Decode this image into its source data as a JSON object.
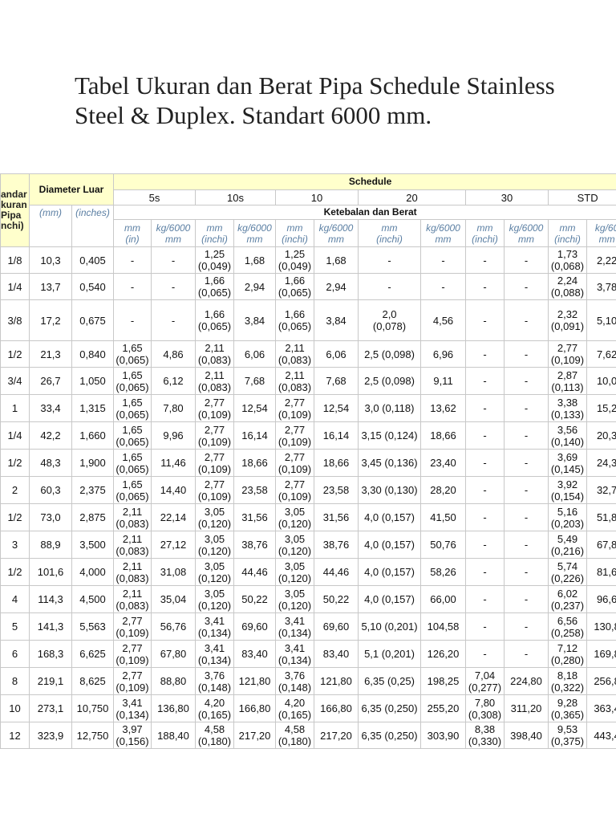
{
  "header": {
    "title": "Tabel Ukuran dan Berat Pipa Schedule Stainless Steel & Duplex. Standart 6000 mm."
  },
  "table": {
    "corner": "andar\nkuran\nPipa\nnchi)",
    "diameter": "Diameter Luar",
    "schedule": "Schedule",
    "schedules": [
      "5s",
      "10s",
      "10",
      "20",
      "30",
      "STD"
    ],
    "mm": "(mm)",
    "inches": "(inches)",
    "subheader": "Ketebalan dan Berat",
    "units": [
      "mm\n(in)",
      "kg/6000\nmm",
      "mm\n(inchi)",
      "kg/6000\nmm",
      "mm\n(inchi)",
      "kg/6000\nmm",
      "mm\n(inchi)",
      "kg/6000\nmm",
      "mm\n(inchi)",
      "kg/6000\nmm",
      "mm\n(inchi)",
      "kg/60\nmm"
    ],
    "rows": [
      [
        "1/8",
        "10,3",
        "0,405",
        "-",
        "-",
        "1,25\n(0,049)",
        "1,68",
        "1,25\n(0,049)",
        "1,68",
        "-",
        "-",
        "-",
        "-",
        "1,73\n(0,068)",
        "2,22"
      ],
      [
        "1/4",
        "13,7",
        "0,540",
        "-",
        "-",
        "1,66\n(0,065)",
        "2,94",
        "1,66\n(0,065)",
        "2,94",
        "-",
        "-",
        "-",
        "-",
        "2,24\n(0,088)",
        "3,78"
      ],
      [
        "3/8",
        "17,2",
        "0,675",
        "-",
        "-",
        "1,66\n(0,065)",
        "3,84",
        "1,66\n(0,065)",
        "3,84",
        "2,0\n(0,078)",
        "4,56",
        "-",
        "-",
        "2,32\n(0,091)",
        "5,10"
      ],
      [
        "1/2",
        "21,3",
        "0,840",
        "1,65\n(0,065)",
        "4,86",
        "2,11\n(0,083)",
        "6,06",
        "2,11\n(0,083)",
        "6,06",
        "2,5 (0,098)",
        "6,96",
        "-",
        "-",
        "2,77\n(0,109)",
        "7,62"
      ],
      [
        "3/4",
        "26,7",
        "1,050",
        "1,65\n(0,065)",
        "6,12",
        "2,11\n(0,083)",
        "7,68",
        "2,11\n(0,083)",
        "7,68",
        "2,5 (0,098)",
        "9,11",
        "-",
        "-",
        "2,87\n(0,113)",
        "10,0"
      ],
      [
        "1",
        "33,4",
        "1,315",
        "1,65\n(0,065)",
        "7,80",
        "2,77\n(0,109)",
        "12,54",
        "2,77\n(0,109)",
        "12,54",
        "3,0 (0,118)",
        "13,62",
        "-",
        "-",
        "3,38\n(0,133)",
        "15,2"
      ],
      [
        "1/4",
        "42,2",
        "1,660",
        "1,65\n(0,065)",
        "9,96",
        "2,77\n(0,109)",
        "16,14",
        "2,77\n(0,109)",
        "16,14",
        "3,15 (0,124)",
        "18,66",
        "-",
        "-",
        "3,56\n(0,140)",
        "20,3"
      ],
      [
        "1/2",
        "48,3",
        "1,900",
        "1,65\n(0,065)",
        "11,46",
        "2,77\n(0,109)",
        "18,66",
        "2,77\n(0,109)",
        "18,66",
        "3,45 (0,136)",
        "23,40",
        "-",
        "-",
        "3,69\n(0,145)",
        "24,3"
      ],
      [
        "2",
        "60,3",
        "2,375",
        "1,65\n(0,065)",
        "14,40",
        "2,77\n(0,109)",
        "23,58",
        "2,77\n(0,109)",
        "23,58",
        "3,30 (0,130)",
        "28,20",
        "-",
        "-",
        "3,92\n(0,154)",
        "32,7"
      ],
      [
        "1/2",
        "73,0",
        "2,875",
        "2,11\n(0,083)",
        "22,14",
        "3,05\n(0,120)",
        "31,56",
        "3,05\n(0,120)",
        "31,56",
        "4,0 (0,157)",
        "41,50",
        "-",
        "-",
        "5,16\n(0,203)",
        "51,8"
      ],
      [
        "3",
        "88,9",
        "3,500",
        "2,11\n(0,083)",
        "27,12",
        "3,05\n(0,120)",
        "38,76",
        "3,05\n(0,120)",
        "38,76",
        "4,0   (0,157)",
        "50,76",
        "-",
        "-",
        "5,49\n(0,216)",
        "67,8"
      ],
      [
        "1/2",
        "101,6",
        "4,000",
        "2,11\n(0,083)",
        "31,08",
        "3,05\n(0,120)",
        "44,46",
        "3,05\n(0,120)",
        "44,46",
        "4,0 (0,157)",
        "58,26",
        "-",
        "-",
        "5,74\n(0,226)",
        "81,6"
      ],
      [
        "4",
        "114,3",
        "4,500",
        "2,11\n(0,083)",
        "35,04",
        "3,05\n(0,120)",
        "50,22",
        "3,05\n(0,120)",
        "50,22",
        "4,0 (0,157)",
        "66,00",
        "-",
        "-",
        "6,02\n(0,237)",
        "96,6"
      ],
      [
        "5",
        "141,3",
        "5,563",
        "2,77\n(0,109)",
        "56,76",
        "3,41\n(0,134)",
        "69,60",
        "3,41\n(0,134)",
        "69,60",
        "5,10 (0,201)",
        "104,58",
        "-",
        "-",
        "6,56\n(0,258)",
        "130,8"
      ],
      [
        "6",
        "168,3",
        "6,625",
        "2,77\n(0,109)",
        "67,80",
        "3,41\n(0,134)",
        "83,40",
        "3,41\n(0,134)",
        "83,40",
        "5,1 (0,201)",
        "126,20",
        "-",
        "-",
        "7,12\n(0,280)",
        "169,8"
      ],
      [
        "8",
        "219,1",
        "8,625",
        "2,77\n(0,109)",
        "88,80",
        "3,76\n(0,148)",
        "121,80",
        "3,76\n(0,148)",
        "121,80",
        "6,35 (0,25)",
        "198,25",
        "7,04\n(0,277)",
        "224,80",
        "8,18\n(0,322)",
        "256,8"
      ],
      [
        "10",
        "273,1",
        "10,750",
        "3,41\n(0,134)",
        "136,80",
        "4,20\n(0,165)",
        "166,80",
        "4,20\n(0,165)",
        "166,80",
        "6,35 (0,250)",
        "255,20",
        "7,80\n(0,308)",
        "311,20",
        "9,28\n(0,365)",
        "363,4"
      ],
      [
        "12",
        "323,9",
        "12,750",
        "3,97\n(0,156)",
        "188,40",
        "4,58\n(0,180)",
        "217,20",
        "4,58\n(0,180)",
        "217,20",
        "6,35 (0,250)",
        "303,90",
        "8,38\n(0,330)",
        "398,40",
        "9,53\n(0,375)",
        "443,4"
      ]
    ]
  }
}
